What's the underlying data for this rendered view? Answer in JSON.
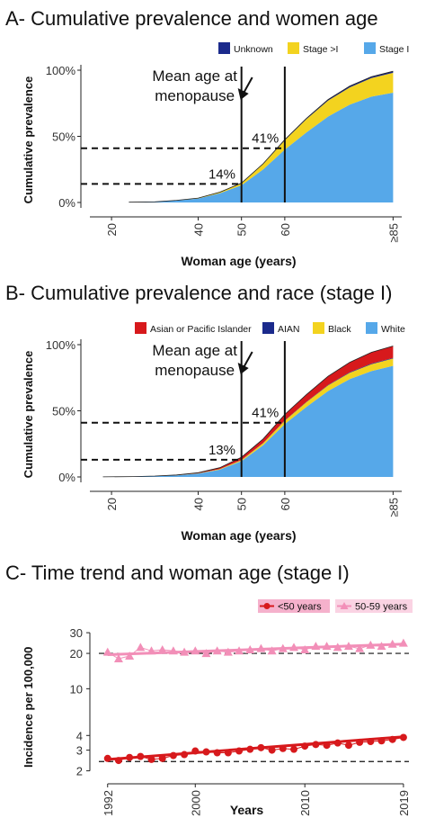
{
  "chart_data": [
    {
      "type": "area",
      "panel_title": "A- Cumulative prevalence and women age",
      "xlabel": "Woman age (years)",
      "ylabel": "Cumulative prevalence",
      "x_ticks": [
        "20",
        "40",
        "50",
        "60",
        "≥85"
      ],
      "y_ticks": [
        "0%",
        "50%",
        "100%"
      ],
      "xlim": [
        15,
        87
      ],
      "ylim": [
        0,
        100
      ],
      "legend": [
        "Unknown",
        "Stage >I",
        "Stage I"
      ],
      "legend_position": "top",
      "colors": {
        "Unknown": "#1b2a8c",
        "Stage >I": "#f3d31f",
        "Stage I": "#56a8e9"
      },
      "x": [
        24,
        30,
        35,
        40,
        45,
        50,
        55,
        60,
        65,
        70,
        75,
        80,
        85
      ],
      "series": [
        {
          "name": "Stage I",
          "values": [
            0.2,
            0.5,
            1.5,
            3,
            7,
            13,
            25,
            40,
            53,
            65,
            74,
            80,
            83
          ]
        },
        {
          "name": "Stage >I",
          "values": [
            0,
            0,
            0.1,
            0.3,
            0.7,
            1.5,
            4,
            7,
            10,
            12,
            13,
            14,
            15
          ]
        },
        {
          "name": "Unknown",
          "values": [
            0,
            0,
            0,
            0,
            0.1,
            0.2,
            0.3,
            0.5,
            0.6,
            0.8,
            1,
            1.1,
            1.2
          ]
        }
      ],
      "annotations": {
        "mean_age_text": [
          "Mean age at",
          "menopause"
        ],
        "vlines": [
          50,
          60
        ],
        "hlines": [
          {
            "y": 14,
            "label": "14%",
            "label_x": 45.5
          },
          {
            "y": 41,
            "label": "41%",
            "label_x": 55.5
          }
        ]
      }
    },
    {
      "type": "area",
      "panel_title": "B- Cumulative prevalence and race (stage I)",
      "xlabel": "Woman age (years)",
      "ylabel": "Cumulative prevalence",
      "x_ticks": [
        "20",
        "40",
        "50",
        "60",
        "≥85"
      ],
      "y_ticks": [
        "0%",
        "50%",
        "100%"
      ],
      "xlim": [
        15,
        87
      ],
      "ylim": [
        0,
        100
      ],
      "legend": [
        "Asian or Pacific Islander",
        "AIAN",
        "Black",
        "White"
      ],
      "legend_position": "top",
      "colors": {
        "Asian or Pacific Islander": "#d7191c",
        "AIAN": "#1b2a8c",
        "Black": "#f3d31f",
        "White": "#56a8e9"
      },
      "x": [
        18,
        25,
        30,
        35,
        40,
        45,
        50,
        55,
        60,
        65,
        70,
        75,
        80,
        85
      ],
      "series": [
        {
          "name": "White",
          "values": [
            0.1,
            0.3,
            0.6,
            1.2,
            2.5,
            5.5,
            12,
            24,
            40,
            53,
            65,
            74,
            80,
            84
          ]
        },
        {
          "name": "Black",
          "values": [
            0,
            0,
            0,
            0.1,
            0.2,
            0.4,
            0.8,
            1.5,
            2.5,
            3.5,
            4.2,
            4.8,
            5.2,
            5.5
          ]
        },
        {
          "name": "AIAN",
          "values": [
            0,
            0,
            0,
            0,
            0,
            0.1,
            0.1,
            0.2,
            0.3,
            0.3,
            0.4,
            0.4,
            0.5,
            0.5
          ]
        },
        {
          "name": "Asian or Pacific Islander",
          "values": [
            0,
            0,
            0.1,
            0.2,
            0.5,
            1,
            2,
            3,
            4.5,
            5.5,
            6.5,
            7.5,
            8.5,
            9
          ]
        }
      ],
      "annotations": {
        "mean_age_text": [
          "Mean age at",
          "menopause"
        ],
        "vlines": [
          50,
          60
        ],
        "hlines": [
          {
            "y": 13,
            "label": "13%",
            "label_x": 45.5
          },
          {
            "y": 41,
            "label": "41%",
            "label_x": 55.5
          }
        ]
      }
    },
    {
      "type": "line",
      "panel_title": "C- Time trend and woman age (stage I)",
      "xlabel": "Years",
      "ylabel": "Incidence per 100,000",
      "y_scale": "log",
      "x_ticks": [
        "1992",
        "2000",
        "2010",
        "2019"
      ],
      "y_ticks": [
        "2",
        "3",
        "4",
        "10",
        "20",
        "30"
      ],
      "xlim": [
        1991.2,
        2019.5
      ],
      "ylim": [
        1.85,
        34
      ],
      "legend": [
        "<50 years",
        "50-59 years"
      ],
      "legend_position": "top",
      "colors": {
        "<50 years": "#d7191c",
        "50-59 years": "#f28fb8"
      },
      "x": [
        1992,
        1993,
        1994,
        1995,
        1996,
        1997,
        1998,
        1999,
        2000,
        2001,
        2002,
        2003,
        2004,
        2005,
        2006,
        2007,
        2008,
        2009,
        2010,
        2011,
        2012,
        2013,
        2014,
        2015,
        2016,
        2017,
        2018,
        2019
      ],
      "series": [
        {
          "name": "<50 years",
          "values": [
            2.55,
            2.45,
            2.6,
            2.65,
            2.5,
            2.55,
            2.7,
            2.75,
            2.95,
            2.9,
            2.85,
            2.85,
            2.95,
            3.05,
            3.15,
            3.0,
            3.1,
            3.05,
            3.25,
            3.35,
            3.3,
            3.45,
            3.3,
            3.5,
            3.55,
            3.6,
            3.7,
            3.85
          ]
        },
        {
          "name": "50-59 years",
          "values": [
            20.5,
            18,
            19,
            22.5,
            21,
            21.5,
            21,
            20.5,
            21,
            20,
            21,
            20.5,
            21,
            21.5,
            22,
            21,
            22,
            22.5,
            21.5,
            23,
            23,
            22.5,
            23,
            22,
            23.5,
            23,
            24,
            24.5
          ]
        }
      ],
      "trend_lines": [
        {
          "name": "<50 years",
          "from": 2.5,
          "to": 3.9
        },
        {
          "name": "50-59 years",
          "from": 19.5,
          "to": 24
        }
      ],
      "hlines": [
        20,
        2.4
      ]
    }
  ]
}
